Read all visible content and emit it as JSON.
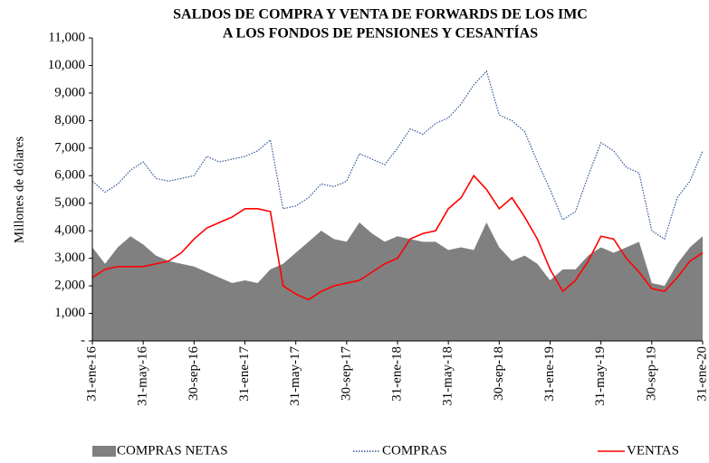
{
  "chart_data": {
    "type": "line",
    "title": [
      "SALDOS DE COMPRA Y VENTA DE FORWARDS DE LOS IMC",
      "A LOS FONDOS DE PENSIONES Y CESANTÍAS"
    ],
    "y_label": "Millones de dólares",
    "categories": [
      "31-ene-16",
      null,
      null,
      null,
      "31-may-16",
      null,
      null,
      null,
      "30-sep-16",
      null,
      null,
      null,
      "31-ene-17",
      null,
      null,
      null,
      "31-may-17",
      null,
      null,
      null,
      "30-sep-17",
      null,
      null,
      null,
      "31-ene-18",
      null,
      null,
      null,
      "31-may-18",
      null,
      null,
      null,
      "30-sep-18",
      null,
      null,
      null,
      "31-ene-19",
      null,
      null,
      null,
      "31-may-19",
      null,
      null,
      null,
      "30-sep-19",
      null,
      null,
      null,
      "31-ene-20"
    ],
    "series": [
      {
        "name": "COMPRAS NETAS",
        "kind": "area",
        "color": "#808080",
        "line_style": "solid",
        "values": [
          3400,
          2800,
          3400,
          3800,
          3500,
          3100,
          2900,
          2800,
          2700,
          2500,
          2300,
          2100,
          2200,
          2100,
          2600,
          2800,
          3200,
          3600,
          4000,
          3700,
          3600,
          4300,
          3900,
          3600,
          3800,
          3700,
          3600,
          3600,
          3300,
          3400,
          3300,
          4300,
          3400,
          2900,
          3100,
          2800,
          2200,
          2600,
          2600,
          3100,
          3400,
          3200,
          3400,
          3600,
          2100,
          2000,
          2800,
          3400,
          3800
        ]
      },
      {
        "name": "COMPRAS",
        "kind": "line",
        "color": "#2e5597",
        "line_style": "dotted",
        "values": [
          5800,
          5400,
          5700,
          6200,
          6500,
          5900,
          5800,
          5900,
          6000,
          6700,
          6500,
          6600,
          6700,
          6900,
          7300,
          4800,
          4900,
          5200,
          5700,
          5600,
          5800,
          6800,
          6600,
          6400,
          7000,
          7700,
          7500,
          7900,
          8100,
          8600,
          9300,
          9800,
          8200,
          8000,
          7600,
          6500,
          5500,
          4400,
          4700,
          6000,
          7200,
          6900,
          6300,
          6100,
          4000,
          3700,
          5200,
          5800,
          6900
        ]
      },
      {
        "name": "VENTAS",
        "kind": "line",
        "color": "#ff0000",
        "line_style": "solid",
        "values": [
          2300,
          2600,
          2700,
          2700,
          2700,
          2800,
          2900,
          3200,
          3700,
          4100,
          4300,
          4500,
          4800,
          4800,
          4700,
          2000,
          1700,
          1500,
          1800,
          2000,
          2100,
          2200,
          2500,
          2800,
          3000,
          3700,
          3900,
          4000,
          4800,
          5200,
          6000,
          5500,
          4800,
          5200,
          4500,
          3700,
          2600,
          1800,
          2200,
          2900,
          3800,
          3700,
          3000,
          2500,
          1900,
          1800,
          2300,
          2900,
          3200
        ]
      }
    ],
    "ylim": [
      0,
      11000
    ],
    "yticks": [
      {
        "value": 0,
        "label": "-"
      },
      {
        "value": 1000,
        "label": "1,000"
      },
      {
        "value": 2000,
        "label": "2,000"
      },
      {
        "value": 3000,
        "label": "3,000"
      },
      {
        "value": 4000,
        "label": "4,000"
      },
      {
        "value": 5000,
        "label": "5,000"
      },
      {
        "value": 6000,
        "label": "6,000"
      },
      {
        "value": 7000,
        "label": "7,000"
      },
      {
        "value": 8000,
        "label": "8,000"
      },
      {
        "value": 9000,
        "label": "9,000"
      },
      {
        "value": 10000,
        "label": "10,000"
      },
      {
        "value": 11000,
        "label": "11,000"
      }
    ],
    "grid": false,
    "legend": "bottom"
  }
}
